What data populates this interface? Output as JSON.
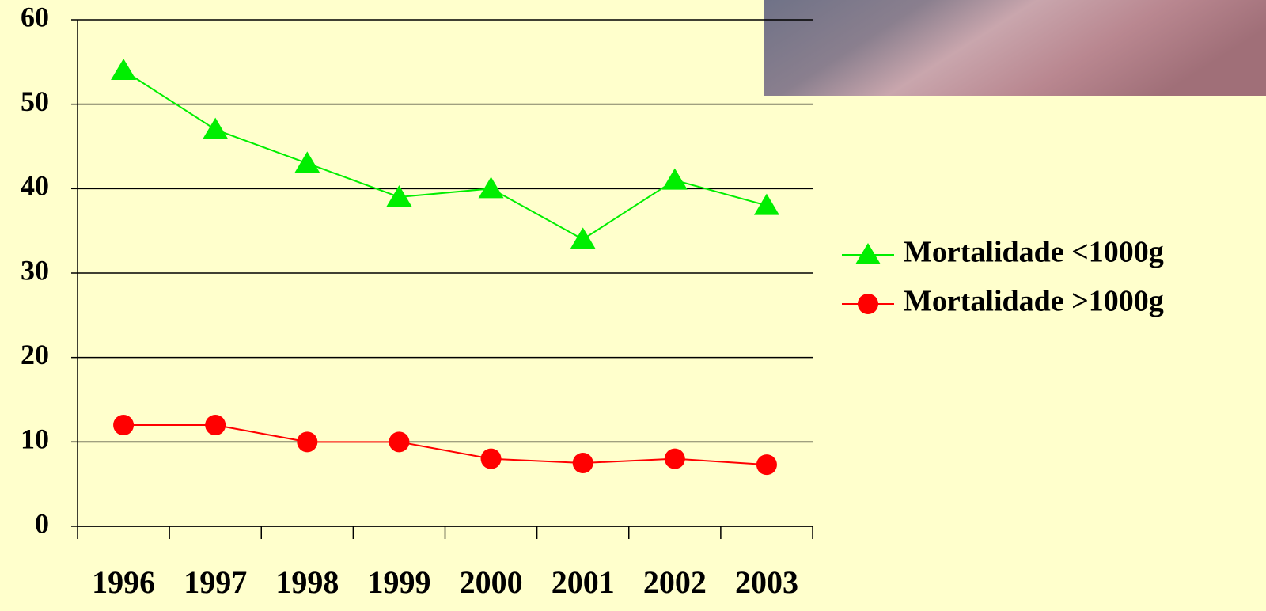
{
  "chart_data": {
    "type": "line",
    "categories": [
      "1996",
      "1997",
      "1998",
      "1999",
      "2000",
      "2001",
      "2002",
      "2003"
    ],
    "series": [
      {
        "name": "Mortalidade <1000g",
        "color": "#00ee00",
        "marker": "triangle",
        "values": [
          54,
          47,
          43,
          39,
          40,
          34,
          41,
          38
        ]
      },
      {
        "name": "Mortalidade >1000g",
        "color": "#ff0000",
        "marker": "circle",
        "values": [
          12,
          12,
          10,
          10,
          8,
          7.5,
          8,
          7.3
        ]
      }
    ],
    "ylim": [
      0,
      60
    ],
    "yticks": [
      0,
      10,
      20,
      30,
      40,
      50,
      60
    ],
    "grid": true,
    "legend": "right"
  }
}
